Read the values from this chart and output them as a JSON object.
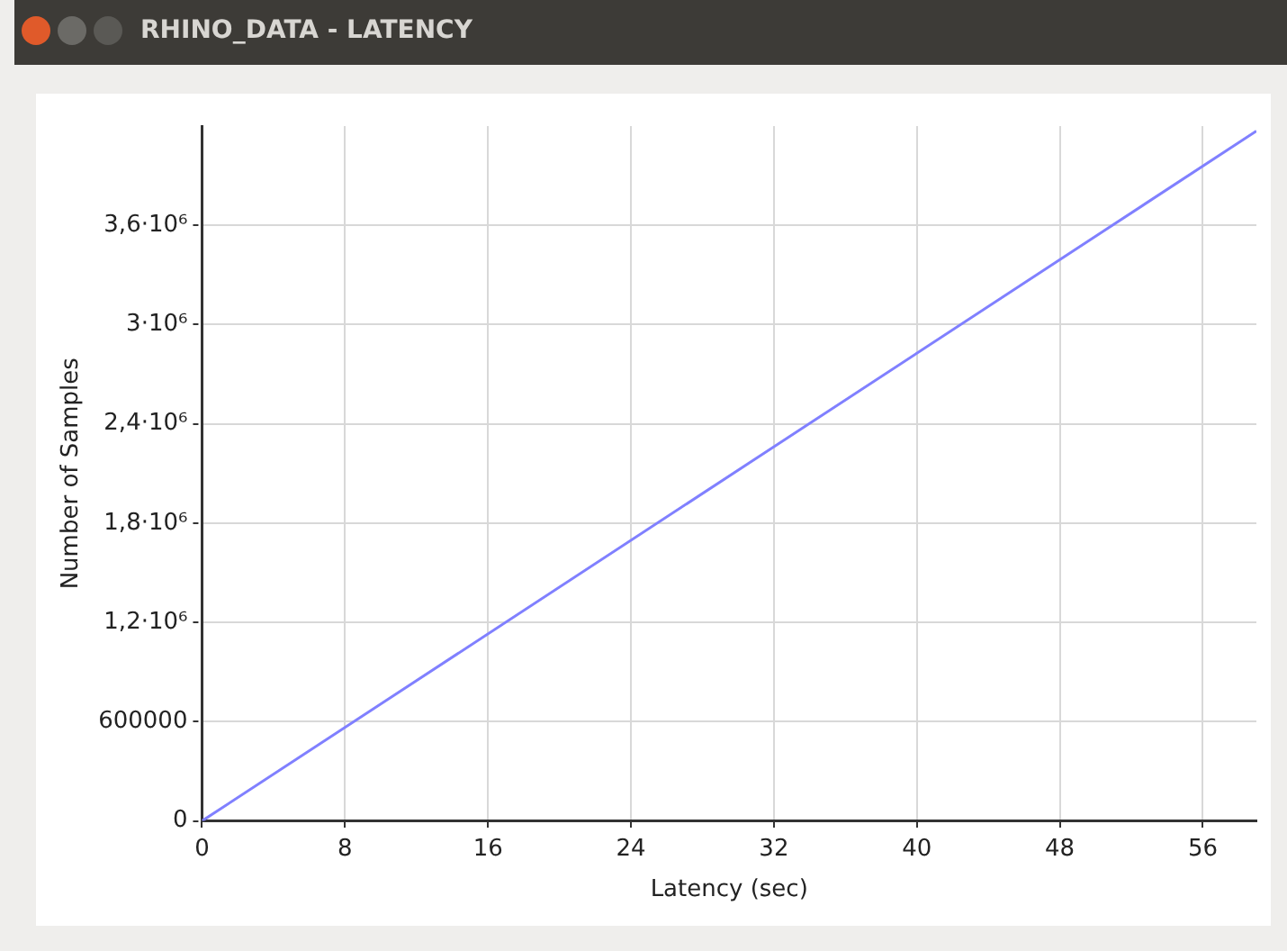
{
  "chart_data": {
    "type": "line",
    "title": "RHINO_DATA - LATENCY",
    "xlabel": "Latency (sec)",
    "ylabel": "Number of Samples",
    "x": [
      0,
      59
    ],
    "series": [
      {
        "color": "#8080ff",
        "values": [
          0,
          4170000
        ]
      }
    ],
    "xlim": [
      0,
      59
    ],
    "xticks": [
      0,
      8,
      16,
      24,
      32,
      40,
      48,
      56
    ],
    "ylim": [
      0,
      4200000
    ],
    "yticks": [
      0,
      600000,
      {
        "value": 1200000,
        "label": "1,2·10⁶"
      },
      {
        "value": 1800000,
        "label": "1,8·10⁶"
      },
      {
        "value": 2400000,
        "label": "2,4·10⁶"
      },
      {
        "value": 3000000,
        "label": "3·10⁶"
      },
      {
        "value": 3600000,
        "label": "3,6·10⁶"
      }
    ],
    "grid": true,
    "legend": false,
    "marker": "none",
    "line_style": "solid"
  }
}
